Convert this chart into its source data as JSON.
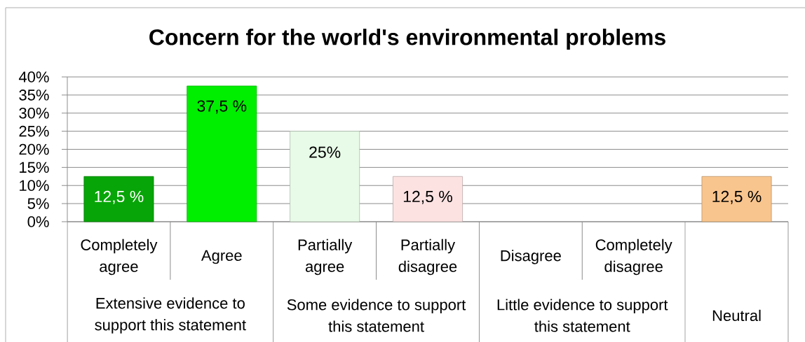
{
  "chart_data": {
    "type": "bar",
    "title": "Concern for the world's environmental problems",
    "categories": [
      "Completely agree",
      "Agree",
      "Partially agree",
      "Partially disagree",
      "Disagree",
      "Completely disagree",
      null
    ],
    "values": [
      12.5,
      37.5,
      25,
      12.5,
      null,
      null,
      12.5
    ],
    "value_labels": [
      "12,5 %",
      "37,5 %",
      "25%",
      "12,5 %",
      null,
      null,
      "12,5 %"
    ],
    "colors": [
      "#07a507",
      "#00ee00",
      "#e8fbe8",
      "#fde2e2",
      "#ffffff",
      "#ffffff",
      "#f9c58e"
    ],
    "annotations": [
      "Extensive evidence to support this statement",
      "Some evidence to support this statement",
      "Little evidence to support this statement",
      "Neutral"
    ],
    "ylim": [
      0,
      40
    ],
    "yticks": [
      {
        "value": 0,
        "label": "0%"
      },
      {
        "value": 5,
        "label": "5%"
      },
      {
        "value": 10,
        "label": "10%"
      },
      {
        "value": 15,
        "label": "15%"
      },
      {
        "value": 20,
        "label": "20%"
      },
      {
        "value": 25,
        "label": "25%"
      },
      {
        "value": 30,
        "label": "30%"
      },
      {
        "value": 35,
        "label": "35%"
      },
      {
        "value": 40,
        "label": "40%"
      }
    ],
    "grid": "y"
  }
}
